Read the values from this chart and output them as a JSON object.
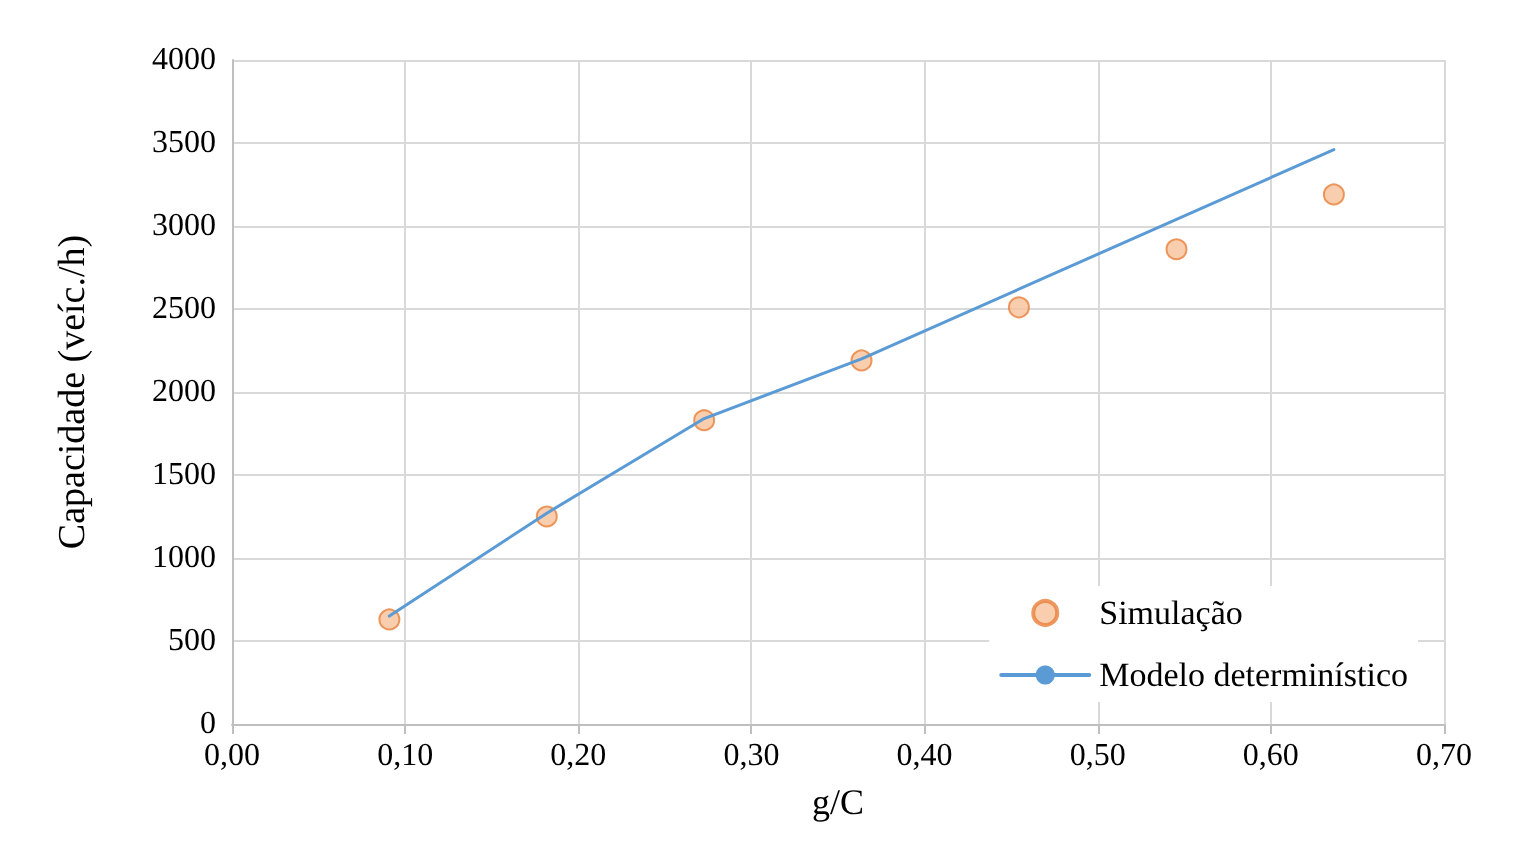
{
  "chart_data": {
    "type": "scatter",
    "xlabel": "g/C",
    "ylabel": "Capacidade (veíc./h)",
    "xlim": [
      0,
      0.7
    ],
    "xticks": [
      {
        "value": 0,
        "label": "0,00"
      },
      {
        "value": 0.1,
        "label": "0,10"
      },
      {
        "value": 0.2,
        "label": "0,20"
      },
      {
        "value": 0.3,
        "label": "0,30"
      },
      {
        "value": 0.4,
        "label": "0,40"
      },
      {
        "value": 0.5,
        "label": "0,50"
      },
      {
        "value": 0.6,
        "label": "0,60"
      },
      {
        "value": 0.7,
        "label": "0,70"
      }
    ],
    "ylim": [
      0,
      4000
    ],
    "yticks": [
      0,
      500,
      1000,
      1500,
      2000,
      2500,
      3000,
      3500,
      4000
    ],
    "grid": true,
    "legend": "bottom right",
    "series": [
      {
        "name": "Simulação",
        "marker": "circle",
        "color": "#f8c29a",
        "x": [
          0.0909,
          0.1818,
          0.2727,
          0.3636,
          0.4545,
          0.5455,
          0.6364
        ],
        "values": [
          630,
          1250,
          1830,
          2190,
          2510,
          2860,
          3190
        ]
      },
      {
        "name": "Modelo determinístico",
        "type": "line",
        "marker": "none",
        "color": "#5b9bd5",
        "x": [
          0.0909,
          0.1818,
          0.2727,
          0.3636,
          0.6364
        ],
        "values": [
          650,
          1270,
          1840,
          2200,
          3460
        ]
      }
    ]
  }
}
